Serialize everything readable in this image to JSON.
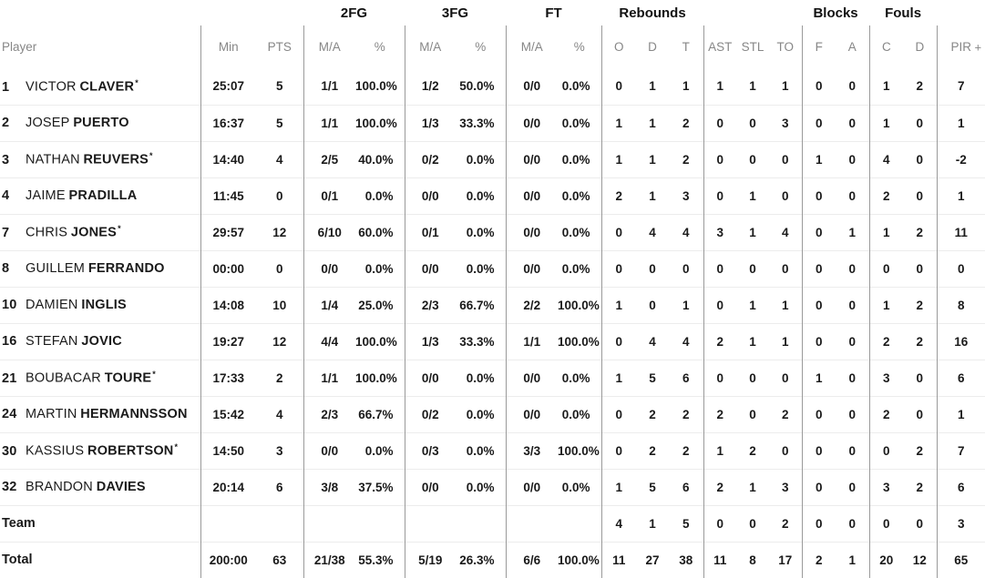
{
  "table": {
    "player_header": "Player",
    "starter_marker": "*",
    "groups": {
      "fg2": "2FG",
      "fg3": "3FG",
      "ft": "FT",
      "rebounds": "Rebounds",
      "blocks": "Blocks",
      "fouls": "Fouls"
    },
    "columns": {
      "min": "Min",
      "pts": "PTS",
      "ma": "M/A",
      "pct": "%",
      "o": "O",
      "d": "D",
      "t": "T",
      "ast": "AST",
      "stl": "STL",
      "to": "TO",
      "f": "F",
      "a": "A",
      "c": "C",
      "d2": "D",
      "pir": "PIR",
      "expand": "+"
    },
    "players": [
      {
        "num": "1",
        "first": "VICTOR",
        "last": "CLAVER",
        "starter": true,
        "min": "25:07",
        "pts": "5",
        "fg2_ma": "1/1",
        "fg2_pct": "100.0%",
        "fg3_ma": "1/2",
        "fg3_pct": "50.0%",
        "ft_ma": "0/0",
        "ft_pct": "0.0%",
        "reb_o": "0",
        "reb_d": "1",
        "reb_t": "1",
        "ast": "1",
        "stl": "1",
        "to": "1",
        "blk_f": "0",
        "blk_a": "0",
        "foul_c": "1",
        "foul_d": "2",
        "pir": "7"
      },
      {
        "num": "2",
        "first": "JOSEP",
        "last": "PUERTO",
        "starter": false,
        "min": "16:37",
        "pts": "5",
        "fg2_ma": "1/1",
        "fg2_pct": "100.0%",
        "fg3_ma": "1/3",
        "fg3_pct": "33.3%",
        "ft_ma": "0/0",
        "ft_pct": "0.0%",
        "reb_o": "1",
        "reb_d": "1",
        "reb_t": "2",
        "ast": "0",
        "stl": "0",
        "to": "3",
        "blk_f": "0",
        "blk_a": "0",
        "foul_c": "1",
        "foul_d": "0",
        "pir": "1"
      },
      {
        "num": "3",
        "first": "NATHAN",
        "last": "REUVERS",
        "starter": true,
        "min": "14:40",
        "pts": "4",
        "fg2_ma": "2/5",
        "fg2_pct": "40.0%",
        "fg3_ma": "0/2",
        "fg3_pct": "0.0%",
        "ft_ma": "0/0",
        "ft_pct": "0.0%",
        "reb_o": "1",
        "reb_d": "1",
        "reb_t": "2",
        "ast": "0",
        "stl": "0",
        "to": "0",
        "blk_f": "1",
        "blk_a": "0",
        "foul_c": "4",
        "foul_d": "0",
        "pir": "-2"
      },
      {
        "num": "4",
        "first": "JAIME",
        "last": "PRADILLA",
        "starter": false,
        "min": "11:45",
        "pts": "0",
        "fg2_ma": "0/1",
        "fg2_pct": "0.0%",
        "fg3_ma": "0/0",
        "fg3_pct": "0.0%",
        "ft_ma": "0/0",
        "ft_pct": "0.0%",
        "reb_o": "2",
        "reb_d": "1",
        "reb_t": "3",
        "ast": "0",
        "stl": "1",
        "to": "0",
        "blk_f": "0",
        "blk_a": "0",
        "foul_c": "2",
        "foul_d": "0",
        "pir": "1"
      },
      {
        "num": "7",
        "first": "CHRIS",
        "last": "JONES",
        "starter": true,
        "min": "29:57",
        "pts": "12",
        "fg2_ma": "6/10",
        "fg2_pct": "60.0%",
        "fg3_ma": "0/1",
        "fg3_pct": "0.0%",
        "ft_ma": "0/0",
        "ft_pct": "0.0%",
        "reb_o": "0",
        "reb_d": "4",
        "reb_t": "4",
        "ast": "3",
        "stl": "1",
        "to": "4",
        "blk_f": "0",
        "blk_a": "1",
        "foul_c": "1",
        "foul_d": "2",
        "pir": "11"
      },
      {
        "num": "8",
        "first": "GUILLEM",
        "last": "FERRANDO",
        "starter": false,
        "min": "00:00",
        "pts": "0",
        "fg2_ma": "0/0",
        "fg2_pct": "0.0%",
        "fg3_ma": "0/0",
        "fg3_pct": "0.0%",
        "ft_ma": "0/0",
        "ft_pct": "0.0%",
        "reb_o": "0",
        "reb_d": "0",
        "reb_t": "0",
        "ast": "0",
        "stl": "0",
        "to": "0",
        "blk_f": "0",
        "blk_a": "0",
        "foul_c": "0",
        "foul_d": "0",
        "pir": "0"
      },
      {
        "num": "10",
        "first": "DAMIEN",
        "last": "INGLIS",
        "starter": false,
        "min": "14:08",
        "pts": "10",
        "fg2_ma": "1/4",
        "fg2_pct": "25.0%",
        "fg3_ma": "2/3",
        "fg3_pct": "66.7%",
        "ft_ma": "2/2",
        "ft_pct": "100.0%",
        "reb_o": "1",
        "reb_d": "0",
        "reb_t": "1",
        "ast": "0",
        "stl": "1",
        "to": "1",
        "blk_f": "0",
        "blk_a": "0",
        "foul_c": "1",
        "foul_d": "2",
        "pir": "8"
      },
      {
        "num": "16",
        "first": "STEFAN",
        "last": "JOVIC",
        "starter": false,
        "min": "19:27",
        "pts": "12",
        "fg2_ma": "4/4",
        "fg2_pct": "100.0%",
        "fg3_ma": "1/3",
        "fg3_pct": "33.3%",
        "ft_ma": "1/1",
        "ft_pct": "100.0%",
        "reb_o": "0",
        "reb_d": "4",
        "reb_t": "4",
        "ast": "2",
        "stl": "1",
        "to": "1",
        "blk_f": "0",
        "blk_a": "0",
        "foul_c": "2",
        "foul_d": "2",
        "pir": "16"
      },
      {
        "num": "21",
        "first": "BOUBACAR",
        "last": "TOURE",
        "starter": true,
        "min": "17:33",
        "pts": "2",
        "fg2_ma": "1/1",
        "fg2_pct": "100.0%",
        "fg3_ma": "0/0",
        "fg3_pct": "0.0%",
        "ft_ma": "0/0",
        "ft_pct": "0.0%",
        "reb_o": "1",
        "reb_d": "5",
        "reb_t": "6",
        "ast": "0",
        "stl": "0",
        "to": "0",
        "blk_f": "1",
        "blk_a": "0",
        "foul_c": "3",
        "foul_d": "0",
        "pir": "6"
      },
      {
        "num": "24",
        "first": "MARTIN",
        "last": "HERMANNSSON",
        "starter": false,
        "min": "15:42",
        "pts": "4",
        "fg2_ma": "2/3",
        "fg2_pct": "66.7%",
        "fg3_ma": "0/2",
        "fg3_pct": "0.0%",
        "ft_ma": "0/0",
        "ft_pct": "0.0%",
        "reb_o": "0",
        "reb_d": "2",
        "reb_t": "2",
        "ast": "2",
        "stl": "0",
        "to": "2",
        "blk_f": "0",
        "blk_a": "0",
        "foul_c": "2",
        "foul_d": "0",
        "pir": "1"
      },
      {
        "num": "30",
        "first": "KASSIUS",
        "last": "ROBERTSON",
        "starter": true,
        "min": "14:50",
        "pts": "3",
        "fg2_ma": "0/0",
        "fg2_pct": "0.0%",
        "fg3_ma": "0/3",
        "fg3_pct": "0.0%",
        "ft_ma": "3/3",
        "ft_pct": "100.0%",
        "reb_o": "0",
        "reb_d": "2",
        "reb_t": "2",
        "ast": "1",
        "stl": "2",
        "to": "0",
        "blk_f": "0",
        "blk_a": "0",
        "foul_c": "0",
        "foul_d": "2",
        "pir": "7"
      },
      {
        "num": "32",
        "first": "BRANDON",
        "last": "DAVIES",
        "starter": false,
        "min": "20:14",
        "pts": "6",
        "fg2_ma": "3/8",
        "fg2_pct": "37.5%",
        "fg3_ma": "0/0",
        "fg3_pct": "0.0%",
        "ft_ma": "0/0",
        "ft_pct": "0.0%",
        "reb_o": "1",
        "reb_d": "5",
        "reb_t": "6",
        "ast": "2",
        "stl": "1",
        "to": "3",
        "blk_f": "0",
        "blk_a": "0",
        "foul_c": "3",
        "foul_d": "2",
        "pir": "6"
      }
    ],
    "team_row": {
      "label": "Team",
      "min": "",
      "pts": "",
      "fg2_ma": "",
      "fg2_pct": "",
      "fg3_ma": "",
      "fg3_pct": "",
      "ft_ma": "",
      "ft_pct": "",
      "reb_o": "4",
      "reb_d": "1",
      "reb_t": "5",
      "ast": "0",
      "stl": "0",
      "to": "2",
      "blk_f": "0",
      "blk_a": "0",
      "foul_c": "0",
      "foul_d": "0",
      "pir": "3"
    },
    "total_row": {
      "label": "Total",
      "min": "200:00",
      "pts": "63",
      "fg2_ma": "21/38",
      "fg2_pct": "55.3%",
      "fg3_ma": "5/19",
      "fg3_pct": "26.3%",
      "ft_ma": "6/6",
      "ft_pct": "100.0%",
      "reb_o": "11",
      "reb_d": "27",
      "reb_t": "38",
      "ast": "11",
      "stl": "8",
      "to": "17",
      "blk_f": "2",
      "blk_a": "1",
      "foul_c": "20",
      "foul_d": "12",
      "pir": "65"
    }
  }
}
